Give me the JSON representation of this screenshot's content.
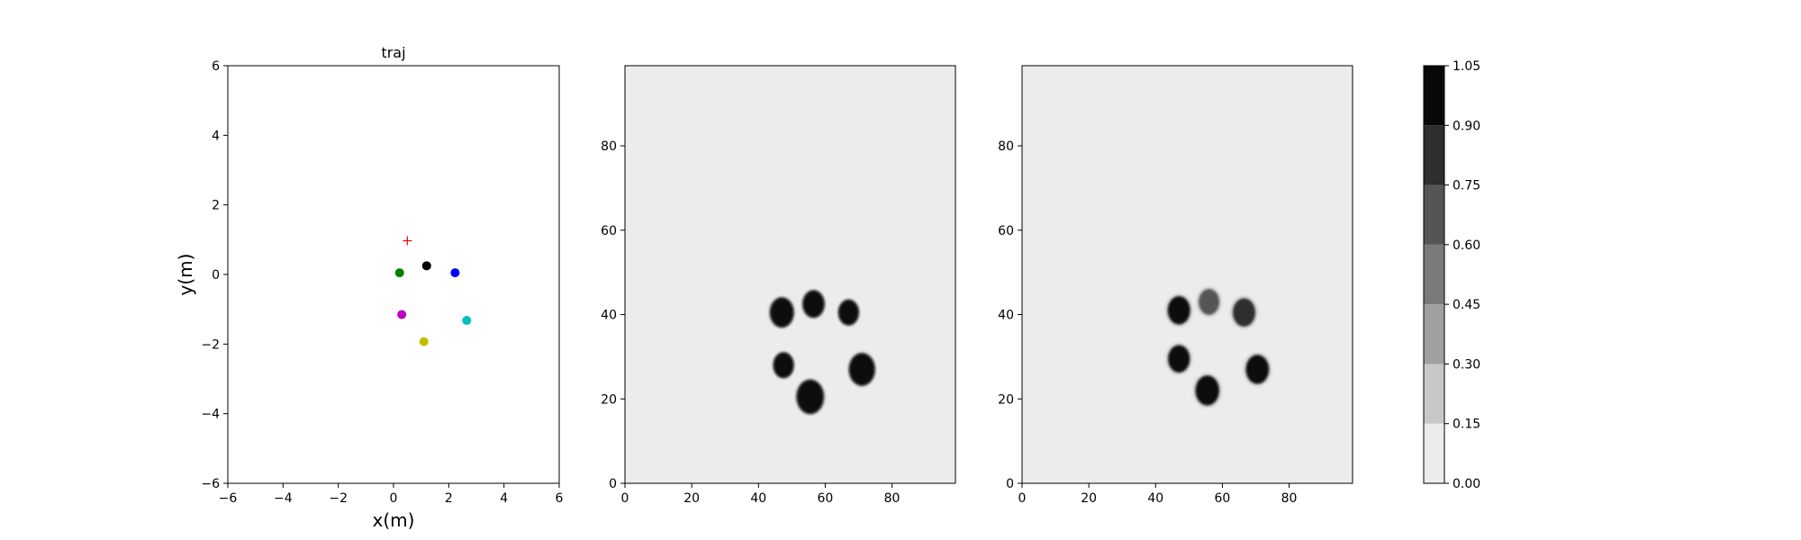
{
  "chart_data": [
    {
      "type": "scatter",
      "title": "traj",
      "xlabel": "x(m)",
      "ylabel": "y(m)",
      "xlim": [
        -6,
        6
      ],
      "ylim": [
        -6,
        6
      ],
      "xticks": [
        -6,
        -4,
        -2,
        0,
        2,
        4,
        6
      ],
      "yticks": [
        -6,
        -4,
        -2,
        0,
        2,
        4,
        6
      ],
      "grid": false,
      "target": {
        "x": 0.5,
        "y": 0.97,
        "marker": "+",
        "color": "#ff0000"
      },
      "points": [
        {
          "x": 1.2,
          "y": 0.25,
          "color": "#000000"
        },
        {
          "x": 0.22,
          "y": 0.05,
          "color": "#008000"
        },
        {
          "x": 2.23,
          "y": 0.05,
          "color": "#0000ff"
        },
        {
          "x": 0.3,
          "y": -1.15,
          "color": "#bf00bf"
        },
        {
          "x": 2.65,
          "y": -1.32,
          "color": "#00bfbf"
        },
        {
          "x": 1.1,
          "y": -1.93,
          "color": "#bfbf00"
        }
      ]
    },
    {
      "type": "heatmap",
      "xlim": [
        0,
        99
      ],
      "ylim": [
        0,
        99
      ],
      "xticks": [
        0,
        20,
        40,
        60,
        80
      ],
      "yticks": [
        0,
        20,
        40,
        60,
        80
      ],
      "background_level": 0.0,
      "blobs": [
        {
          "x": 47,
          "y": 40.5,
          "r": 3.5,
          "level": 1.0
        },
        {
          "x": 56.5,
          "y": 42.5,
          "r": 3.2,
          "level": 1.0
        },
        {
          "x": 67,
          "y": 40.5,
          "r": 3.0,
          "level": 1.0
        },
        {
          "x": 47.5,
          "y": 28,
          "r": 3.0,
          "level": 1.0
        },
        {
          "x": 71,
          "y": 27,
          "r": 3.8,
          "level": 1.0
        },
        {
          "x": 55.5,
          "y": 20.5,
          "r": 4.0,
          "level": 1.0
        }
      ]
    },
    {
      "type": "heatmap",
      "xlim": [
        0,
        99
      ],
      "ylim": [
        0,
        99
      ],
      "xticks": [
        0,
        20,
        40,
        60,
        80
      ],
      "yticks": [
        0,
        20,
        40,
        60,
        80
      ],
      "background_level": 0.0,
      "blobs": [
        {
          "x": 47,
          "y": 41,
          "r": 3.3,
          "level": 0.95
        },
        {
          "x": 56,
          "y": 43,
          "r": 3.0,
          "level": 0.65
        },
        {
          "x": 66.5,
          "y": 40.5,
          "r": 3.3,
          "level": 0.85
        },
        {
          "x": 47,
          "y": 29.5,
          "r": 3.2,
          "level": 0.9
        },
        {
          "x": 70.5,
          "y": 27,
          "r": 3.4,
          "level": 0.95
        },
        {
          "x": 55.5,
          "y": 22,
          "r": 3.5,
          "level": 0.95
        }
      ]
    }
  ],
  "colorbar": {
    "levels": [
      0.0,
      0.15,
      0.3,
      0.45,
      0.6,
      0.75,
      0.9,
      1.05
    ],
    "tick_labels": [
      "0.00",
      "0.15",
      "0.30",
      "0.45",
      "0.60",
      "0.75",
      "0.90",
      "1.05"
    ],
    "colors": [
      "#ececec",
      "#c8c8c8",
      "#a0a0a0",
      "#7a7a7a",
      "#555555",
      "#2e2e2e",
      "#080808"
    ]
  }
}
